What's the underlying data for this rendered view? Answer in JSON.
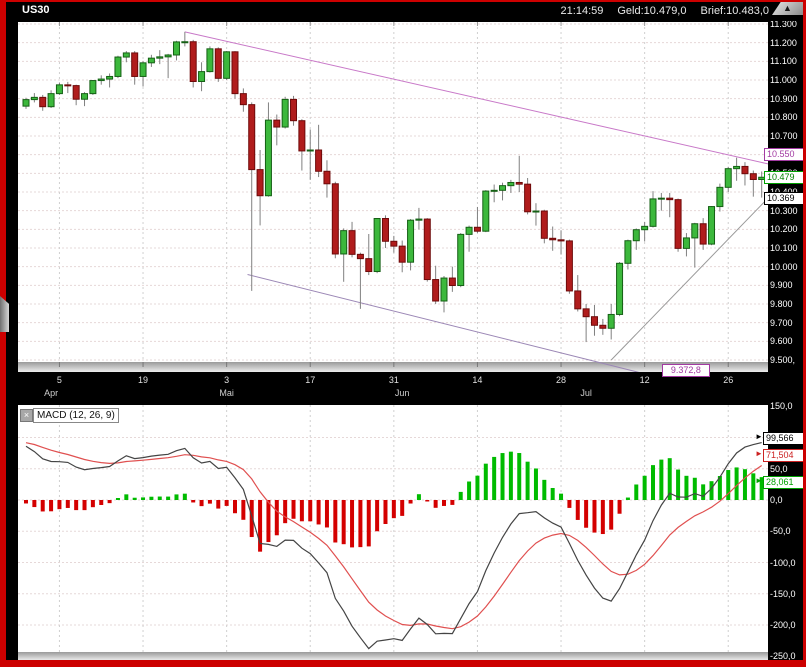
{
  "window": {
    "symbol": "US30",
    "time": "21:14:59",
    "bid": "Geld:10.479,0",
    "ask": "Brief:10.483,0",
    "collapse_icon": "chevron-up",
    "frame_color": "#cc0000"
  },
  "colors": {
    "candle_up_fill": "#3CB83C",
    "candle_up_border": "#156015",
    "candle_down_fill": "#B01C1C",
    "candle_down_border": "#6E0A0A",
    "wick": "#808080",
    "hist_up": "#00BB00",
    "hist_down": "#D40000",
    "macd_line": "#444444",
    "signal_line": "#E05050",
    "grid_h": "#E6D8D8",
    "grid_v": "#D0D0D0",
    "axis_text": "#FFFFFF"
  },
  "chart_data": [
    {
      "type": "candlestick",
      "symbol": "US30",
      "y_ticks": [
        {
          "label": "11.300",
          "value": 11300
        },
        {
          "label": "11.200",
          "value": 11200
        },
        {
          "label": "11.100",
          "value": 11100
        },
        {
          "label": "11.000",
          "value": 11000
        },
        {
          "label": "10.900",
          "value": 10900
        },
        {
          "label": "10.800",
          "value": 10800
        },
        {
          "label": "10.700",
          "value": 10700
        },
        {
          "label": "10.600",
          "value": 10600
        },
        {
          "label": "10.500",
          "value": 10500
        },
        {
          "label": "10.400",
          "value": 10400
        },
        {
          "label": "10.300",
          "value": 10300
        },
        {
          "label": "10.200",
          "value": 10200
        },
        {
          "label": "10.100",
          "value": 10100
        },
        {
          "label": "10.000",
          "value": 10000
        },
        {
          "label": "9.900",
          "value": 9900
        },
        {
          "label": "9.800",
          "value": 9800
        },
        {
          "label": "9.700",
          "value": 9700
        },
        {
          "label": "9.600",
          "value": 9600
        },
        {
          "label": "9.500,",
          "value": 9500
        }
      ],
      "x_day_ticks": [
        {
          "label": "5",
          "index": 4
        },
        {
          "label": "19",
          "index": 14
        },
        {
          "label": "3",
          "index": 24
        },
        {
          "label": "17",
          "index": 34
        },
        {
          "label": "31",
          "index": 44
        },
        {
          "label": "14",
          "index": 54
        },
        {
          "label": "28",
          "index": 64
        },
        {
          "label": "12",
          "index": 74
        },
        {
          "label": "26",
          "index": 84
        }
      ],
      "x_month_ticks": [
        {
          "label": "Apr",
          "index": 3
        },
        {
          "label": "Mai",
          "index": 24
        },
        {
          "label": "Jun",
          "index": 45
        },
        {
          "label": "Jul",
          "index": 67
        }
      ],
      "price_labels": [
        {
          "text": "10.550",
          "value": 10550,
          "style": "channel"
        },
        {
          "text": "10.479",
          "value": 10479,
          "style": "bid"
        },
        {
          "text": "10.369",
          "value": 10369,
          "style": "plain"
        }
      ],
      "floating_label": {
        "text": "9.372,8",
        "value": 9372.8
      },
      "trendlines": [
        {
          "name": "upper-channel-line",
          "color": "#C878C8",
          "from": [
            19,
            11258
          ],
          "to": [
            88.8,
            10550
          ]
        },
        {
          "name": "lower-channel-line",
          "color": "#9B87B5",
          "from": [
            26.5,
            9958
          ],
          "to": [
            76.3,
            9400
          ]
        },
        {
          "name": "support-line",
          "color": "#999999",
          "from": [
            70,
            9500
          ],
          "to": [
            88.8,
            10369
          ]
        }
      ],
      "candles": [
        [
          10860,
          10905,
          10845,
          10895
        ],
        [
          10895,
          10930,
          10880,
          10907
        ],
        [
          10907,
          10920,
          10835,
          10857
        ],
        [
          10857,
          10945,
          10850,
          10927
        ],
        [
          10927,
          10985,
          10920,
          10974
        ],
        [
          10974,
          10990,
          10930,
          10970
        ],
        [
          10970,
          10975,
          10865,
          10897
        ],
        [
          10897,
          10935,
          10860,
          10927
        ],
        [
          10927,
          11000,
          10920,
          10997
        ],
        [
          10997,
          11025,
          10975,
          11005
        ],
        [
          11005,
          11035,
          10960,
          11019
        ],
        [
          11019,
          11130,
          11010,
          11123
        ],
        [
          11123,
          11155,
          11095,
          11145
        ],
        [
          11145,
          11155,
          10975,
          11019
        ],
        [
          11019,
          11100,
          10965,
          11092
        ],
        [
          11092,
          11135,
          11070,
          11117
        ],
        [
          11117,
          11160,
          11085,
          11124
        ],
        [
          11124,
          11140,
          11010,
          11134
        ],
        [
          11134,
          11210,
          11105,
          11204
        ],
        [
          11204,
          11258,
          11180,
          11205
        ],
        [
          11205,
          11215,
          10960,
          10992
        ],
        [
          10992,
          11095,
          10940,
          11045
        ],
        [
          11045,
          11180,
          11040,
          11167
        ],
        [
          11167,
          11175,
          10990,
          11009
        ],
        [
          11009,
          11155,
          11000,
          11151
        ],
        [
          11151,
          11155,
          10900,
          10927
        ],
        [
          10927,
          10955,
          10830,
          10868
        ],
        [
          10868,
          10880,
          9870,
          10520
        ],
        [
          10520,
          10625,
          10221,
          10380
        ],
        [
          10380,
          10880,
          10375,
          10785
        ],
        [
          10785,
          10815,
          10650,
          10748
        ],
        [
          10748,
          10910,
          10740,
          10896
        ],
        [
          10896,
          10915,
          10755,
          10782
        ],
        [
          10782,
          10790,
          10515,
          10620
        ],
        [
          10620,
          10735,
          10465,
          10625
        ],
        [
          10625,
          10760,
          10480,
          10511
        ],
        [
          10511,
          10570,
          10370,
          10444
        ],
        [
          10444,
          10455,
          10045,
          10068
        ],
        [
          10068,
          10205,
          9919,
          10193
        ],
        [
          10193,
          10240,
          10050,
          10066
        ],
        [
          10066,
          10075,
          9774,
          10043
        ],
        [
          10043,
          10175,
          9955,
          9974
        ],
        [
          9974,
          10260,
          9965,
          10258
        ],
        [
          10258,
          10275,
          10100,
          10136
        ],
        [
          10136,
          10165,
          10075,
          10110
        ],
        [
          10110,
          10140,
          9970,
          10024
        ],
        [
          10024,
          10255,
          9980,
          10249
        ],
        [
          10249,
          10315,
          10200,
          10255
        ],
        [
          10255,
          10260,
          9920,
          9931
        ],
        [
          9931,
          10005,
          9800,
          9816
        ],
        [
          9816,
          9950,
          9755,
          9939
        ],
        [
          9939,
          10000,
          9865,
          9899
        ],
        [
          9899,
          10180,
          9890,
          10173
        ],
        [
          10173,
          10220,
          10080,
          10211
        ],
        [
          10211,
          10320,
          10180,
          10190
        ],
        [
          10190,
          10410,
          10185,
          10405
        ],
        [
          10405,
          10440,
          10345,
          10409
        ],
        [
          10409,
          10450,
          10355,
          10434
        ],
        [
          10434,
          10465,
          10395,
          10451
        ],
        [
          10451,
          10594,
          10400,
          10442
        ],
        [
          10442,
          10475,
          10280,
          10294
        ],
        [
          10294,
          10340,
          10220,
          10298
        ],
        [
          10298,
          10305,
          10125,
          10152
        ],
        [
          10152,
          10215,
          10085,
          10144
        ],
        [
          10144,
          10195,
          10065,
          10138
        ],
        [
          10138,
          10145,
          9855,
          9870
        ],
        [
          9870,
          9955,
          9760,
          9774
        ],
        [
          9774,
          9800,
          9596,
          9732
        ],
        [
          9732,
          9795,
          9630,
          9686
        ],
        [
          9686,
          9720,
          9635,
          9670
        ],
        [
          9670,
          9800,
          9610,
          9744
        ],
        [
          9744,
          10025,
          9735,
          10018
        ],
        [
          10018,
          10145,
          9985,
          10139
        ],
        [
          10139,
          10205,
          10090,
          10198
        ],
        [
          10198,
          10240,
          10135,
          10216
        ],
        [
          10216,
          10405,
          10210,
          10363
        ],
        [
          10363,
          10395,
          10300,
          10367
        ],
        [
          10367,
          10395,
          10265,
          10359
        ],
        [
          10359,
          10365,
          10080,
          10098
        ],
        [
          10098,
          10180,
          10055,
          10154
        ],
        [
          10154,
          10235,
          9995,
          10230
        ],
        [
          10230,
          10260,
          10090,
          10121
        ],
        [
          10121,
          10325,
          10115,
          10322
        ],
        [
          10322,
          10445,
          10295,
          10425
        ],
        [
          10425,
          10535,
          10400,
          10525
        ],
        [
          10525,
          10584,
          10460,
          10537
        ],
        [
          10537,
          10560,
          10435,
          10498
        ],
        [
          10498,
          10515,
          10375,
          10467
        ],
        [
          10467,
          10510,
          10370,
          10479
        ]
      ]
    },
    {
      "type": "macd",
      "label": "MACD (12, 26, 9)",
      "fast": 12,
      "slow": 26,
      "signal_period": 9,
      "y_ticks": [
        {
          "label": "150,0",
          "value": 150
        },
        {
          "label": "100,0",
          "value": 100
        },
        {
          "label": "50,0",
          "value": 50
        },
        {
          "label": "0,0",
          "value": 0
        },
        {
          "label": "-50,0",
          "value": -50
        },
        {
          "label": "-100,0",
          "value": -100
        },
        {
          "label": "-150,0",
          "value": -150
        },
        {
          "label": "-200,0",
          "value": -200
        },
        {
          "label": "-250,0",
          "value": -250
        }
      ],
      "value_labels": [
        {
          "text": "99,566",
          "value": 99.566,
          "series": "macd"
        },
        {
          "text": "71,504",
          "value": 71.504,
          "series": "signal"
        },
        {
          "text": "28,061",
          "value": 28.061,
          "series": "histogram"
        }
      ],
      "seed": {
        "ema_fast": 10942,
        "ema_slow": 10845,
        "signal": 93
      }
    }
  ]
}
